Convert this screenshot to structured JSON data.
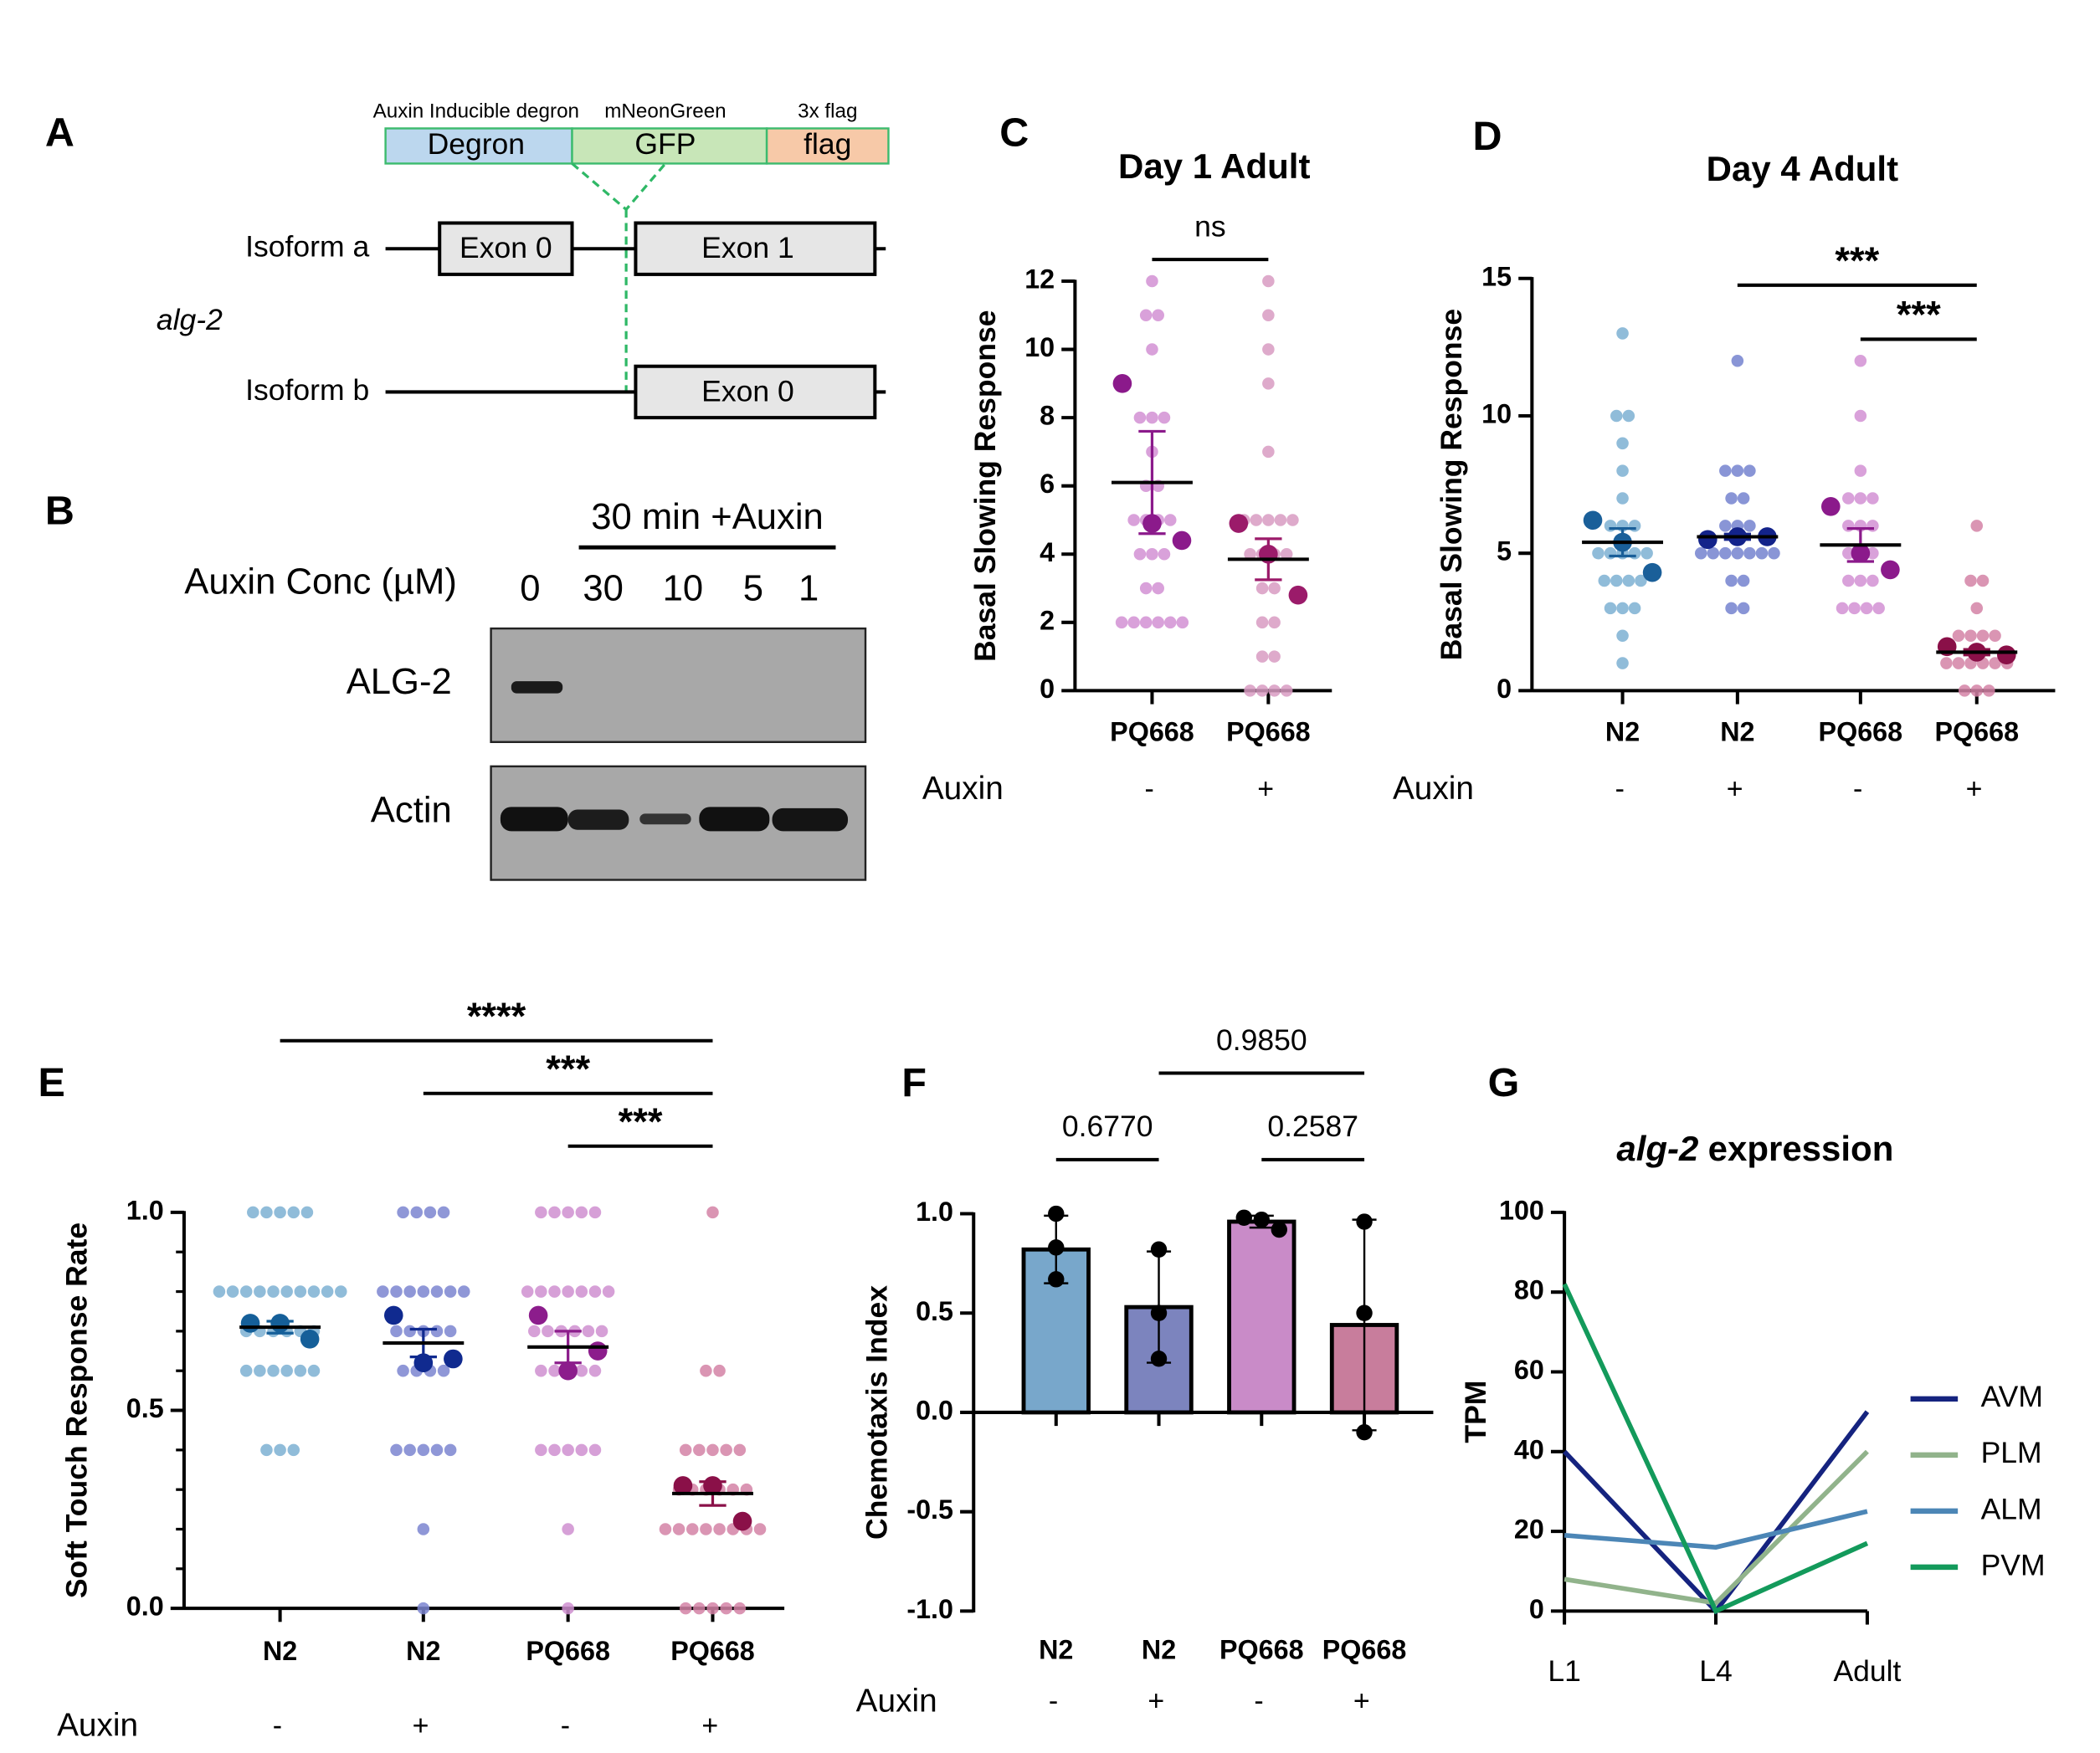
{
  "panel_labels": [
    "A",
    "B",
    "C",
    "D",
    "E",
    "F",
    "G"
  ],
  "diagram": {
    "tags": [
      {
        "caption": "Auxin Inducible degron",
        "label": "Degron"
      },
      {
        "caption": "mNeonGreen",
        "label": "GFP"
      },
      {
        "caption": "3x flag",
        "label": "flag"
      }
    ],
    "gene": "alg-2",
    "isoforms": [
      {
        "name": "Isoform a",
        "exons": [
          "Exon 0",
          "Exon 1"
        ]
      },
      {
        "name": "Isoform b",
        "exons": [
          "Exon 0"
        ]
      }
    ]
  },
  "blot": {
    "treatment": "30 min +Auxin",
    "conc_label": "Auxin Conc (µM)",
    "concentrations": [
      "0",
      "30",
      "10",
      "5",
      "1"
    ],
    "rows": [
      "ALG-2",
      "Actin"
    ]
  },
  "chart_data": [
    {
      "type": "dotplot",
      "title": "Day 1 Adult",
      "ylabel": "Basal Slowing Response",
      "auxin_label": "Auxin",
      "ylim": [
        0,
        12
      ],
      "yticks": [
        0,
        2,
        4,
        6,
        8,
        10,
        12
      ],
      "groups": [
        {
          "name": "PQ668",
          "auxin": "-",
          "color": "#d291d4",
          "replicate_color": "#8b1a8b",
          "points": [
            12,
            11,
            11,
            10,
            8,
            8,
            8,
            7,
            6,
            6,
            5,
            5,
            5,
            5,
            4,
            4,
            4,
            3,
            3,
            2,
            2,
            2,
            2,
            2,
            2
          ],
          "replicate_means": [
            9,
            4.9,
            4.4
          ],
          "mean": 6.1,
          "sem": 1.5
        },
        {
          "name": "PQ668",
          "auxin": "+",
          "color": "#d89bc2",
          "replicate_color": "#9b1b6a",
          "points": [
            12,
            11,
            10,
            9,
            7,
            5,
            5,
            5,
            5,
            5,
            4,
            4,
            4,
            4,
            3,
            3,
            2,
            2,
            1,
            1,
            0,
            0,
            0,
            0
          ],
          "replicate_means": [
            4.9,
            4.0,
            2.8
          ],
          "mean": 3.85,
          "sem": 0.6
        }
      ],
      "comparisons": [
        {
          "pair": [
            0,
            1
          ],
          "label": "ns"
        }
      ]
    },
    {
      "type": "dotplot",
      "title": "Day 4 Adult",
      "ylabel": "Basal Slowing Response",
      "auxin_label": "Auxin",
      "ylim": [
        0,
        15
      ],
      "yticks": [
        0,
        5,
        10,
        15
      ],
      "groups": [
        {
          "name": "N2",
          "auxin": "-",
          "color": "#7db0d2",
          "replicate_color": "#1a5f99",
          "points": [
            13,
            10,
            10,
            9,
            8,
            7,
            6,
            6,
            6,
            5,
            5,
            5,
            5,
            5,
            4,
            4,
            4,
            4,
            3,
            3,
            3,
            2,
            1
          ],
          "replicate_means": [
            6.2,
            5.4,
            4.3
          ],
          "mean": 5.4,
          "sem": 0.5
        },
        {
          "name": "N2",
          "auxin": "+",
          "color": "#7482cf",
          "replicate_color": "#13238a",
          "points": [
            12,
            8,
            8,
            8,
            7,
            7,
            6,
            6,
            6,
            5,
            5,
            5,
            5,
            5,
            5,
            5,
            4,
            4,
            3,
            3
          ],
          "replicate_means": [
            5.5,
            5.6,
            5.6
          ],
          "mean": 5.6,
          "sem": 0.1
        },
        {
          "name": "PQ668",
          "auxin": "-",
          "color": "#d291d4",
          "replicate_color": "#8b1a8b",
          "points": [
            12,
            10,
            8,
            7,
            7,
            7,
            6,
            6,
            6,
            5,
            5,
            5,
            4,
            4,
            4,
            3,
            3,
            3,
            3
          ],
          "replicate_means": [
            6.7,
            5.0,
            4.4
          ],
          "mean": 5.3,
          "sem": 0.6
        },
        {
          "name": "PQ668",
          "auxin": "+",
          "color": "#d382a6",
          "replicate_color": "#8a1048",
          "points": [
            6,
            4,
            4,
            3,
            2,
            2,
            2,
            2,
            1,
            1,
            1,
            1,
            1,
            1,
            0,
            0,
            0
          ],
          "replicate_means": [
            1.6,
            1.4,
            1.3
          ],
          "mean": 1.4,
          "sem": 0.1
        }
      ],
      "comparisons": [
        {
          "pair": [
            1,
            3
          ],
          "label": "***"
        },
        {
          "pair": [
            2,
            3
          ],
          "label": "***"
        }
      ]
    },
    {
      "type": "dotplot",
      "ylabel": "Soft Touch Response Rate",
      "auxin_label": "Auxin",
      "ylim": [
        0,
        1
      ],
      "yticks": [
        {
          "value": 0,
          "label": "0.0"
        },
        0.5,
        {
          "value": 1,
          "label": "1.0"
        }
      ],
      "yminorticks": [
        0.1,
        0.2,
        0.3,
        0.4,
        0.6,
        0.7,
        0.8,
        0.9
      ],
      "groups": [
        {
          "name": "N2",
          "auxin": "-",
          "color": "#7db0d2",
          "replicate_color": "#155f99",
          "points": [
            1,
            1,
            1,
            1,
            1,
            0.8,
            0.8,
            0.8,
            0.8,
            0.8,
            0.8,
            0.8,
            0.8,
            0.8,
            0.8,
            0.7,
            0.7,
            0.7,
            0.7,
            0.7,
            0.7,
            0.6,
            0.6,
            0.6,
            0.6,
            0.6,
            0.6,
            0.4,
            0.4,
            0.4
          ],
          "replicate_means": [
            0.72,
            0.72,
            0.68
          ],
          "mean": 0.71,
          "sem": 0.015
        },
        {
          "name": "N2",
          "auxin": "+",
          "color": "#7b85d0",
          "replicate_color": "#102a8f",
          "points": [
            1,
            1,
            1,
            1,
            0.8,
            0.8,
            0.8,
            0.8,
            0.8,
            0.8,
            0.8,
            0.7,
            0.7,
            0.7,
            0.7,
            0.7,
            0.6,
            0.6,
            0.6,
            0.6,
            0.4,
            0.4,
            0.4,
            0.4,
            0.4,
            0.2,
            0
          ],
          "replicate_means": [
            0.74,
            0.62,
            0.63
          ],
          "mean": 0.67,
          "sem": 0.035
        },
        {
          "name": "PQ668",
          "auxin": "-",
          "color": "#cf8fd0",
          "replicate_color": "#8c1d8c",
          "points": [
            1,
            1,
            1,
            1,
            1,
            0.8,
            0.8,
            0.8,
            0.8,
            0.8,
            0.8,
            0.8,
            0.7,
            0.7,
            0.7,
            0.7,
            0.7,
            0.7,
            0.6,
            0.6,
            0.6,
            0.6,
            0.6,
            0.4,
            0.4,
            0.4,
            0.4,
            0.4,
            0.2,
            0
          ],
          "replicate_means": [
            0.74,
            0.6,
            0.65
          ],
          "mean": 0.66,
          "sem": 0.04
        },
        {
          "name": "PQ668",
          "auxin": "+",
          "color": "#d382a6",
          "replicate_color": "#8a1048",
          "points": [
            1,
            0.6,
            0.6,
            0.4,
            0.4,
            0.4,
            0.4,
            0.4,
            0.3,
            0.3,
            0.3,
            0.3,
            0.3,
            0.3,
            0.2,
            0.2,
            0.2,
            0.2,
            0.2,
            0.2,
            0.2,
            0.2,
            0,
            0,
            0,
            0,
            0
          ],
          "replicate_means": [
            0.31,
            0.31,
            0.22
          ],
          "mean": 0.29,
          "sem": 0.03
        }
      ],
      "comparisons": [
        {
          "pair": [
            0,
            3
          ],
          "label": "****"
        },
        {
          "pair": [
            1,
            3
          ],
          "label": "***"
        },
        {
          "pair": [
            2,
            3
          ],
          "label": "***"
        }
      ]
    },
    {
      "type": "bar",
      "ylabel": "Chemotaxis Index",
      "auxin_label": "Auxin",
      "ylim": [
        -1,
        1
      ],
      "yticks": [
        {
          "value": -1,
          "label": "-1.0"
        },
        {
          "value": -0.5,
          "label": "-0.5"
        },
        {
          "value": 0,
          "label": "0.0"
        },
        {
          "value": 0.5,
          "label": "0.5"
        },
        {
          "value": 1,
          "label": "1.0"
        }
      ],
      "groups": [
        {
          "name": "N2",
          "auxin": "-",
          "color": "#78a7cb",
          "value": 0.82,
          "error": 0.17,
          "points": [
            1.0,
            0.83,
            0.67
          ]
        },
        {
          "name": "N2",
          "auxin": "+",
          "color": "#7c84be",
          "value": 0.53,
          "error": 0.28,
          "points": [
            0.82,
            0.5,
            0.27
          ]
        },
        {
          "name": "PQ668",
          "auxin": "-",
          "color": "#c98bc8",
          "value": 0.96,
          "error": 0.03,
          "points": [
            0.98,
            0.97,
            0.92
          ]
        },
        {
          "name": "PQ668",
          "auxin": "+",
          "color": "#c87d9c",
          "value": 0.44,
          "error": 0.53,
          "points": [
            0.96,
            0.5,
            -0.1
          ]
        }
      ],
      "comparisons": [
        {
          "pair": [
            0,
            1
          ],
          "label": "0.6770"
        },
        {
          "pair": [
            1,
            3
          ],
          "label": "0.9850"
        },
        {
          "pair": [
            2,
            3
          ],
          "label": "0.2587"
        }
      ]
    },
    {
      "type": "line",
      "title_parts": [
        {
          "text": "alg-2",
          "italic": true
        },
        {
          "text": "expression"
        }
      ],
      "ylabel": "TPM",
      "categories": [
        "L1",
        "L4",
        "Adult"
      ],
      "ylim": [
        0,
        100
      ],
      "yticks": [
        0,
        20,
        40,
        60,
        80,
        100
      ],
      "series": [
        {
          "name": "AVM",
          "color": "#15237f",
          "values": [
            40,
            0,
            50
          ]
        },
        {
          "name": "PLM",
          "color": "#91b38b",
          "values": [
            8,
            2,
            40
          ]
        },
        {
          "name": "ALM",
          "color": "#4c86b6",
          "values": [
            19,
            16,
            25
          ]
        },
        {
          "name": "PVM",
          "color": "#139a5b",
          "values": [
            82,
            0,
            17
          ]
        }
      ]
    }
  ]
}
